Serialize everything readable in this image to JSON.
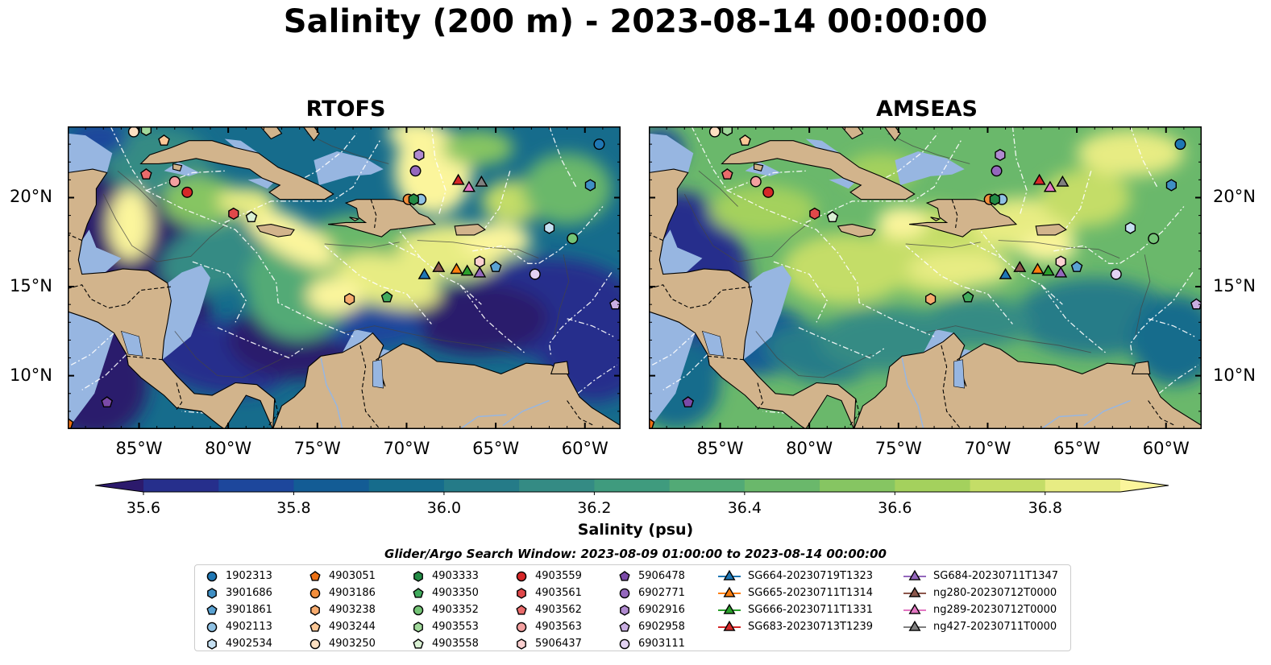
{
  "title": "Salinity (200 m) - 2023-08-14 00:00:00",
  "panels": [
    {
      "title": "RTOFS"
    },
    {
      "title": "AMSEAS"
    }
  ],
  "map_extent": {
    "lon": [
      -89,
      -58
    ],
    "lat": [
      7,
      24
    ]
  },
  "lat_ticks": [
    {
      "value": 20,
      "label": "20°N"
    },
    {
      "value": 15,
      "label": "15°N"
    },
    {
      "value": 10,
      "label": "10°N"
    }
  ],
  "lon_ticks": [
    {
      "value": -85,
      "label": "85°W"
    },
    {
      "value": -80,
      "label": "80°W"
    },
    {
      "value": -75,
      "label": "75°W"
    },
    {
      "value": -70,
      "label": "70°W"
    },
    {
      "value": -65,
      "label": "65°W"
    },
    {
      "value": -60,
      "label": "60°W"
    }
  ],
  "colorbar": {
    "label": "Salinity (psu)",
    "range": [
      35.5,
      37.0
    ],
    "extend": "both",
    "ticks": [
      {
        "value": 35.6,
        "label": "35.6"
      },
      {
        "value": 35.8,
        "label": "35.8"
      },
      {
        "value": 36.0,
        "label": "36.0"
      },
      {
        "value": 36.2,
        "label": "36.2"
      },
      {
        "value": 36.4,
        "label": "36.4"
      },
      {
        "value": 36.6,
        "label": "36.6"
      },
      {
        "value": 36.8,
        "label": "36.8"
      }
    ],
    "colors": [
      "#2c1a6c",
      "#262f8c",
      "#1d479c",
      "#135c95",
      "#166c8c",
      "#257b88",
      "#348b84",
      "#3f9b7e",
      "#52aa76",
      "#6ab86b",
      "#86c562",
      "#a4d15d",
      "#c4dd67",
      "#e7ec83",
      "#fbf59c"
    ]
  },
  "legend": {
    "title": "Glider/Argo Search Window: 2023-08-09 01:00:00 to 2023-08-14 00:00:00",
    "columns": [
      [
        {
          "label": "1902313",
          "marker": "circle",
          "color": "#1f77b4"
        },
        {
          "label": "3901686",
          "marker": "hexagon",
          "color": "#3f8fc4"
        },
        {
          "label": "3901861",
          "marker": "pentagon",
          "color": "#5aa2d2"
        },
        {
          "label": "4902113",
          "marker": "circle",
          "color": "#8fc1e3"
        },
        {
          "label": "4902534",
          "marker": "hexagon",
          "color": "#c6e0f2"
        }
      ],
      [
        {
          "label": "4903051",
          "marker": "pentagon",
          "color": "#ec7014"
        },
        {
          "label": "4903186",
          "marker": "circle",
          "color": "#f28e3c"
        },
        {
          "label": "4903238",
          "marker": "hexagon",
          "color": "#f7ab6e"
        },
        {
          "label": "4903244",
          "marker": "pentagon",
          "color": "#fbc796"
        },
        {
          "label": "4903250",
          "marker": "circle",
          "color": "#fde0c2"
        }
      ],
      [
        {
          "label": "4903333",
          "marker": "hexagon",
          "color": "#238b45"
        },
        {
          "label": "4903350",
          "marker": "pentagon",
          "color": "#41ab5d"
        },
        {
          "label": "4903352",
          "marker": "circle",
          "color": "#74c476"
        },
        {
          "label": "4903553",
          "marker": "hexagon",
          "color": "#a1d99b"
        },
        {
          "label": "4903558",
          "marker": "pentagon",
          "color": "#d9f0d3"
        }
      ],
      [
        {
          "label": "4903559",
          "marker": "circle",
          "color": "#d62728"
        },
        {
          "label": "4903561",
          "marker": "hexagon",
          "color": "#e0484a"
        },
        {
          "label": "4903562",
          "marker": "pentagon",
          "color": "#ea6b6b"
        },
        {
          "label": "4903563",
          "marker": "circle",
          "color": "#f3a0a0"
        },
        {
          "label": "5906437",
          "marker": "hexagon",
          "color": "#fbd0d0"
        }
      ],
      [
        {
          "label": "5906478",
          "marker": "pentagon",
          "color": "#7b4aa8"
        },
        {
          "label": "6902771",
          "marker": "circle",
          "color": "#9467bd"
        },
        {
          "label": "6902916",
          "marker": "hexagon",
          "color": "#b08ad0"
        },
        {
          "label": "6902958",
          "marker": "pentagon",
          "color": "#c9aee2"
        },
        {
          "label": "6903111",
          "marker": "circle",
          "color": "#e2d2f2"
        }
      ],
      [
        {
          "label": "SG664-20230719T1323",
          "marker": "triangle",
          "color": "#1f77b4"
        },
        {
          "label": "SG665-20230711T1314",
          "marker": "triangle",
          "color": "#ff7f0e"
        },
        {
          "label": "SG666-20230711T1331",
          "marker": "triangle",
          "color": "#2ca02c"
        },
        {
          "label": "SG683-20230713T1239",
          "marker": "triangle",
          "color": "#d62728"
        }
      ],
      [
        {
          "label": "SG684-20230711T1347",
          "marker": "triangle",
          "color": "#9467bd"
        },
        {
          "label": "ng280-20230712T0000",
          "marker": "triangle",
          "color": "#8c564b"
        },
        {
          "label": "ng289-20230712T0000",
          "marker": "triangle",
          "color": "#e377c2"
        },
        {
          "label": "ng427-20230711T0000",
          "marker": "triangle",
          "color": "#7f7f7f"
        }
      ]
    ]
  },
  "markers": [
    {
      "label": "1902313",
      "lon": -59.2,
      "lat": 23.0,
      "marker": "circle",
      "color": "#1f77b4"
    },
    {
      "label": "3901686",
      "lon": -59.7,
      "lat": 20.7,
      "marker": "hexagon",
      "color": "#3f8fc4"
    },
    {
      "label": "3901861",
      "lon": -65.0,
      "lat": 16.1,
      "marker": "pentagon",
      "color": "#5aa2d2"
    },
    {
      "label": "4902113",
      "lon": -69.2,
      "lat": 19.9,
      "marker": "circle",
      "color": "#8fc1e3"
    },
    {
      "label": "4902534",
      "lon": -62.0,
      "lat": 18.3,
      "marker": "hexagon",
      "color": "#c6e0f2"
    },
    {
      "label": "4903051",
      "lon": -89.0,
      "lat": 7.3,
      "marker": "pentagon",
      "color": "#ec7014"
    },
    {
      "label": "4903186",
      "lon": -69.9,
      "lat": 19.9,
      "marker": "circle",
      "color": "#f28e3c"
    },
    {
      "label": "4903238",
      "lon": -73.2,
      "lat": 14.3,
      "marker": "hexagon",
      "color": "#f7ab6e"
    },
    {
      "label": "4903244",
      "lon": -83.6,
      "lat": 23.2,
      "marker": "pentagon",
      "color": "#fbc796"
    },
    {
      "label": "4903250",
      "lon": -85.3,
      "lat": 23.7,
      "marker": "circle",
      "color": "#fde0c2"
    },
    {
      "label": "4903333",
      "lon": -69.6,
      "lat": 19.9,
      "marker": "hexagon",
      "color": "#238b45"
    },
    {
      "label": "4903350",
      "lon": -71.1,
      "lat": 14.4,
      "marker": "pentagon",
      "color": "#41ab5d"
    },
    {
      "label": "4903352",
      "lon": -60.7,
      "lat": 17.7,
      "marker": "circle",
      "color": "#74c476"
    },
    {
      "label": "4903553",
      "lon": -84.6,
      "lat": 23.8,
      "marker": "hexagon",
      "color": "#a1d99b"
    },
    {
      "label": "4903558",
      "lon": -78.7,
      "lat": 18.9,
      "marker": "pentagon",
      "color": "#d9f0d3"
    },
    {
      "label": "4903559",
      "lon": -82.3,
      "lat": 20.3,
      "marker": "circle",
      "color": "#d62728"
    },
    {
      "label": "4903561",
      "lon": -79.7,
      "lat": 19.1,
      "marker": "hexagon",
      "color": "#e0484a"
    },
    {
      "label": "4903562",
      "lon": -84.6,
      "lat": 21.3,
      "marker": "pentagon",
      "color": "#ea6b6b"
    },
    {
      "label": "4903563",
      "lon": -83.0,
      "lat": 20.9,
      "marker": "circle",
      "color": "#f3a0a0"
    },
    {
      "label": "5906437",
      "lon": -65.9,
      "lat": 16.4,
      "marker": "hexagon",
      "color": "#fbd0d0"
    },
    {
      "label": "5906478",
      "lon": -86.8,
      "lat": 8.5,
      "marker": "pentagon",
      "color": "#7b4aa8"
    },
    {
      "label": "6902771",
      "lon": -69.5,
      "lat": 21.5,
      "marker": "circle",
      "color": "#9467bd"
    },
    {
      "label": "6902916",
      "lon": -69.3,
      "lat": 22.4,
      "marker": "hexagon",
      "color": "#b08ad0"
    },
    {
      "label": "6902958",
      "lon": -58.3,
      "lat": 14.0,
      "marker": "pentagon",
      "color": "#c9aee2"
    },
    {
      "label": "6903111",
      "lon": -62.8,
      "lat": 15.7,
      "marker": "circle",
      "color": "#e2d2f2"
    },
    {
      "label": "SG664-20230719T1323",
      "lon": -69.0,
      "lat": 15.7,
      "marker": "triangle",
      "color": "#1f77b4"
    },
    {
      "label": "SG665-20230711T1314",
      "lon": -67.2,
      "lat": 16.0,
      "marker": "triangle",
      "color": "#ff7f0e"
    },
    {
      "label": "SG666-20230711T1331",
      "lon": -66.6,
      "lat": 15.9,
      "marker": "triangle",
      "color": "#2ca02c"
    },
    {
      "label": "SG683-20230713T1239",
      "lon": -67.1,
      "lat": 21.0,
      "marker": "triangle",
      "color": "#d62728"
    },
    {
      "label": "SG684-20230711T1347",
      "lon": -65.9,
      "lat": 15.8,
      "marker": "triangle",
      "color": "#9467bd"
    },
    {
      "label": "ng280-20230712T0000",
      "lon": -68.2,
      "lat": 16.1,
      "marker": "triangle",
      "color": "#8c564b"
    },
    {
      "label": "ng289-20230712T0000",
      "lon": -66.5,
      "lat": 20.6,
      "marker": "triangle",
      "color": "#e377c2"
    },
    {
      "label": "ng427-20230711T0000",
      "lon": -65.8,
      "lat": 20.9,
      "marker": "triangle",
      "color": "#7f7f7f"
    }
  ],
  "colors": {
    "land": "#d2b48c",
    "shallow_water": "#97b6e1",
    "contour": "#444444"
  }
}
